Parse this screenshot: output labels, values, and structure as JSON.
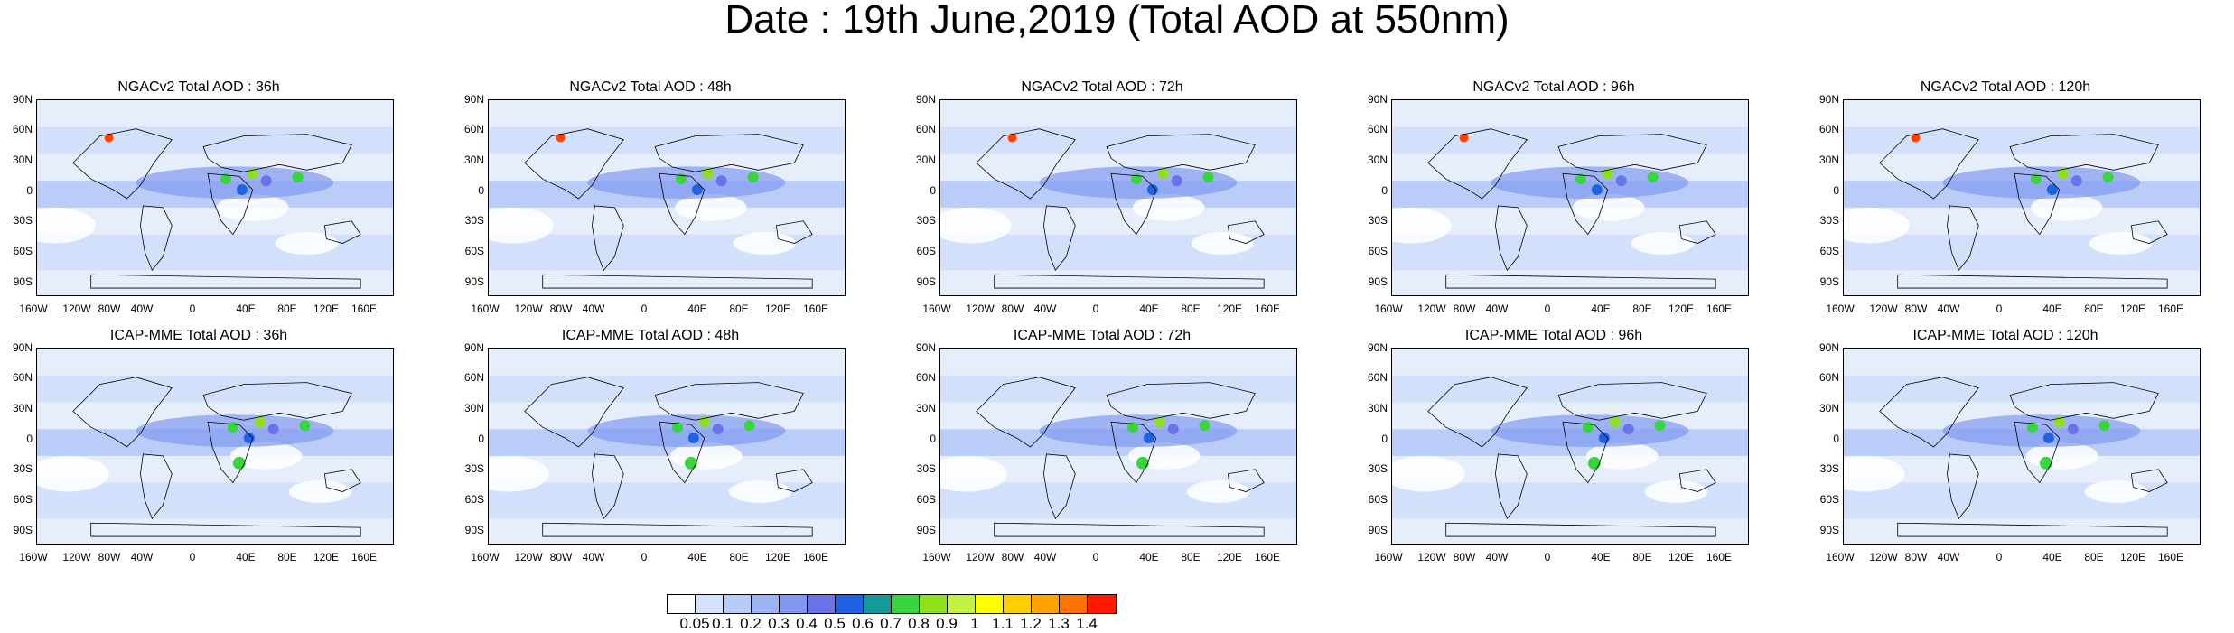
{
  "title": "Date : 19th June,2019 (Total AOD at 550nm)",
  "panels": [
    {
      "title": "NGACv2 Total AOD : 36h"
    },
    {
      "title": "NGACv2 Total AOD : 48h"
    },
    {
      "title": "NGACv2 Total AOD : 72h"
    },
    {
      "title": "NGACv2 Total AOD : 96h"
    },
    {
      "title": "NGACv2 Total AOD : 120h"
    },
    {
      "title": "ICAP-MME Total AOD : 36h"
    },
    {
      "title": "ICAP-MME Total AOD : 48h"
    },
    {
      "title": "ICAP-MME Total AOD : 72h"
    },
    {
      "title": "ICAP-MME Total AOD : 96h"
    },
    {
      "title": "ICAP-MME Total AOD : 120h"
    }
  ],
  "lat_ticks": [
    "90N",
    "60N",
    "30N",
    "0",
    "30S",
    "60S",
    "90S"
  ],
  "lon_ticks": [
    "160W",
    "120W",
    "80W",
    "40W",
    "0",
    "40E",
    "80E",
    "120E",
    "160E"
  ],
  "colorbar": {
    "labels": [
      "0.05",
      "0.1",
      "0.2",
      "0.3",
      "0.4",
      "0.5",
      "0.6",
      "0.7",
      "0.8",
      "0.9",
      "1",
      "1.1",
      "1.2",
      "1.3",
      "1.4"
    ],
    "colors": [
      "#ffffff",
      "#d4e2fb",
      "#b8ccf8",
      "#9cb4f4",
      "#8098f0",
      "#6a74e8",
      "#1f63e3",
      "#149a98",
      "#38d53e",
      "#8ee01c",
      "#c4f042",
      "#ffff00",
      "#ffce00",
      "#ffa200",
      "#ff7400",
      "#ff1a00"
    ]
  }
}
